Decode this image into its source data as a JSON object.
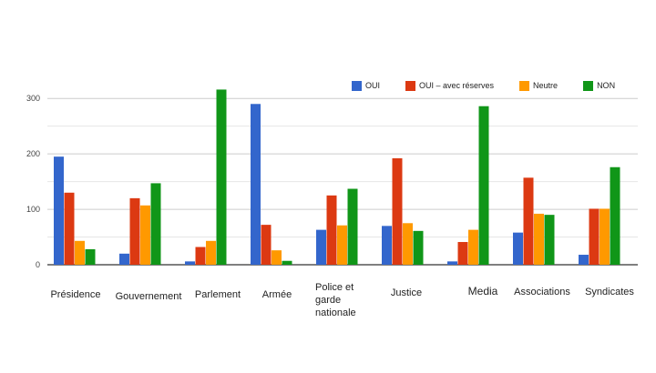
{
  "chart_data": {
    "type": "bar",
    "categories": [
      "Présidence",
      "Gouvernement",
      "Parlement",
      "Armée",
      "Police et garde nationale",
      "Justice",
      "Media",
      "Associations",
      "Syndicates"
    ],
    "series": [
      {
        "name": "OUI",
        "color": "#3366cc",
        "values": [
          195,
          20,
          6,
          290,
          63,
          70,
          6,
          58,
          18
        ]
      },
      {
        "name": "OUI – avec réserves",
        "color": "#dc3912",
        "values": [
          130,
          120,
          32,
          72,
          125,
          192,
          41,
          157,
          101
        ]
      },
      {
        "name": "Neutre",
        "color": "#ff9900",
        "values": [
          43,
          107,
          43,
          26,
          71,
          75,
          63,
          92,
          101
        ]
      },
      {
        "name": "NON",
        "color": "#109618",
        "values": [
          28,
          147,
          316,
          7,
          137,
          61,
          286,
          90,
          176
        ]
      }
    ],
    "yticks": [
      "0",
      "100",
      "200",
      "300"
    ],
    "ylim": [
      0,
      320
    ],
    "grid": true,
    "legend_position": "top-right"
  }
}
